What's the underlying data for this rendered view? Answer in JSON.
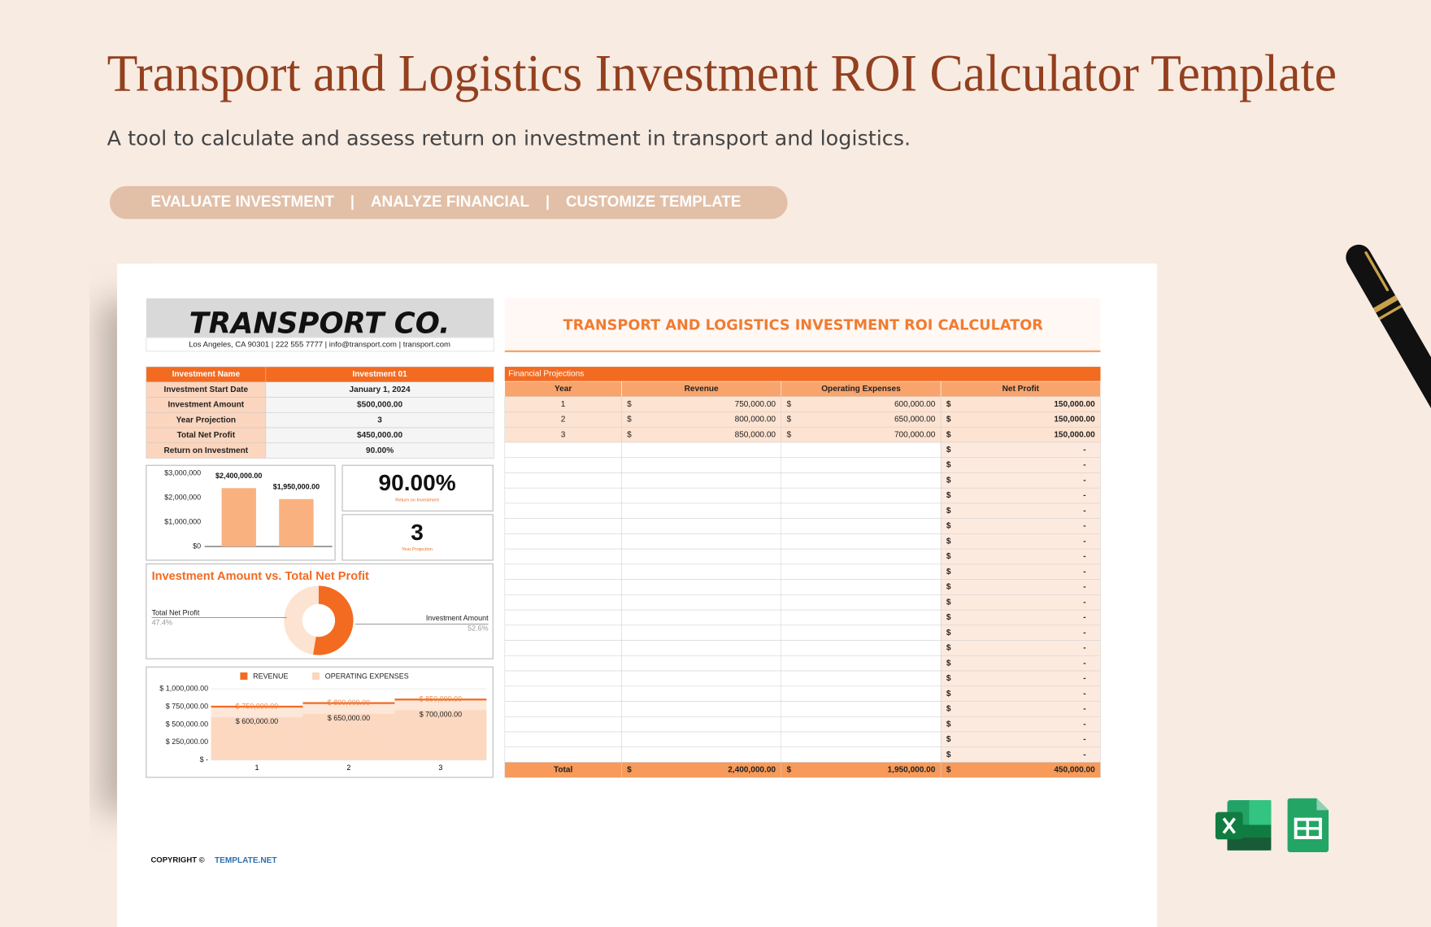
{
  "header": {
    "title": "Transport and Logistics Investment ROI Calculator Template",
    "subtitle": "A tool to calculate and assess return on investment in transport and logistics.",
    "tags": [
      "EVALUATE INVESTMENT",
      "ANALYZE FINANCIAL",
      "CUSTOMIZE TEMPLATE"
    ]
  },
  "company": {
    "name": "TRANSPORT CO.",
    "contact": "Los Angeles, CA 90301 | 222 555 7777 | info@transport.com | transport.com"
  },
  "summary": {
    "header": [
      "Investment Name",
      "Investment 01"
    ],
    "rows": [
      [
        "Investment Start Date",
        "January 1, 2024"
      ],
      [
        "Investment Amount",
        "$500,000.00"
      ],
      [
        "Year Projection",
        "3"
      ],
      [
        "Total Net Profit",
        "$450,000.00"
      ],
      [
        "Return on Investment",
        "90.00%"
      ]
    ]
  },
  "kpis": [
    {
      "value": "90.00%",
      "label": "Return on Investment"
    },
    {
      "value": "3",
      "label": "Year Projection"
    }
  ],
  "chart_data": [
    {
      "type": "bar",
      "categories": [
        null,
        null
      ],
      "values": [
        2400000,
        1950000
      ],
      "value_labels": [
        "$2,400,000.00",
        "$1,950,000.00"
      ],
      "color": "#f9b27f",
      "ylim": [
        0,
        3000000
      ],
      "yticks": [
        {
          "value": 0,
          "label": "$0"
        },
        {
          "value": 1000000,
          "label": "$1,000,000"
        },
        {
          "value": 2000000,
          "label": "$2,000,000"
        },
        {
          "value": 3000000,
          "label": "$3,000,000"
        }
      ],
      "grid": false
    },
    {
      "type": "pie",
      "title": "Investment Amount vs. Total Net Profit",
      "categories": [
        "Total Net Profit",
        "Investment Amount"
      ],
      "values": [
        47.4,
        52.6
      ],
      "value_labels": [
        "47.4%",
        "52.6%"
      ],
      "colors": [
        "#fde3d1",
        "#f26b21"
      ],
      "donut": true
    },
    {
      "type": "area",
      "categories": [
        "1",
        "2",
        "3"
      ],
      "series": [
        {
          "name": "REVENUE",
          "color": "#f26b21",
          "values": [
            750000,
            800000,
            850000
          ],
          "value_labels": [
            "$ 750,000.00",
            "$ 800,000.00",
            "$ 850,000.00"
          ]
        },
        {
          "name": "OPERATING EXPENSES",
          "color": "#fbd5bc",
          "values": [
            600000,
            650000,
            700000
          ],
          "value_labels": [
            "$ 600,000.00",
            "$ 650,000.00",
            "$ 700,000.00"
          ]
        }
      ],
      "ylim": [
        0,
        1000000
      ],
      "yticks": [
        {
          "value": 0,
          "label": "$ -"
        },
        {
          "value": 250000,
          "label": "$ 250,000.00"
        },
        {
          "value": 500000,
          "label": "$ 500,000.00"
        },
        {
          "value": 750000,
          "label": "$ 750,000.00"
        },
        {
          "value": 1000000,
          "label": "$ 1,000,000.00"
        }
      ],
      "grid": true,
      "legend": "top"
    }
  ],
  "table": {
    "title": "TRANSPORT AND LOGISTICS INVESTMENT ROI CALCULATOR",
    "section": "Financial Projections",
    "currency": "$",
    "columns": [
      "Year",
      "Revenue",
      "Operating Expenses",
      "Net Profit"
    ],
    "rows": [
      [
        "1",
        "750,000.00",
        "600,000.00",
        "150,000.00"
      ],
      [
        "2",
        "800,000.00",
        "650,000.00",
        "150,000.00"
      ],
      [
        "3",
        "850,000.00",
        "700,000.00",
        "150,000.00"
      ],
      [
        null,
        null,
        null,
        "-"
      ],
      [
        null,
        null,
        null,
        "-"
      ],
      [
        null,
        null,
        null,
        "-"
      ],
      [
        null,
        null,
        null,
        "-"
      ],
      [
        null,
        null,
        null,
        "-"
      ],
      [
        null,
        null,
        null,
        "-"
      ],
      [
        null,
        null,
        null,
        "-"
      ],
      [
        null,
        null,
        null,
        "-"
      ],
      [
        null,
        null,
        null,
        "-"
      ],
      [
        null,
        null,
        null,
        "-"
      ],
      [
        null,
        null,
        null,
        "-"
      ],
      [
        null,
        null,
        null,
        "-"
      ],
      [
        null,
        null,
        null,
        "-"
      ],
      [
        null,
        null,
        null,
        "-"
      ],
      [
        null,
        null,
        null,
        "-"
      ],
      [
        null,
        null,
        null,
        "-"
      ],
      [
        null,
        null,
        null,
        "-"
      ],
      [
        null,
        null,
        null,
        "-"
      ],
      [
        null,
        null,
        null,
        "-"
      ],
      [
        null,
        null,
        null,
        "-"
      ],
      [
        null,
        null,
        null,
        "-"
      ]
    ],
    "total": [
      "Total",
      "2,400,000.00",
      "1,950,000.00",
      "450,000.00"
    ]
  },
  "footer": {
    "copyright": "COPYRIGHT ©",
    "brand": "TEMPLATE.NET"
  }
}
